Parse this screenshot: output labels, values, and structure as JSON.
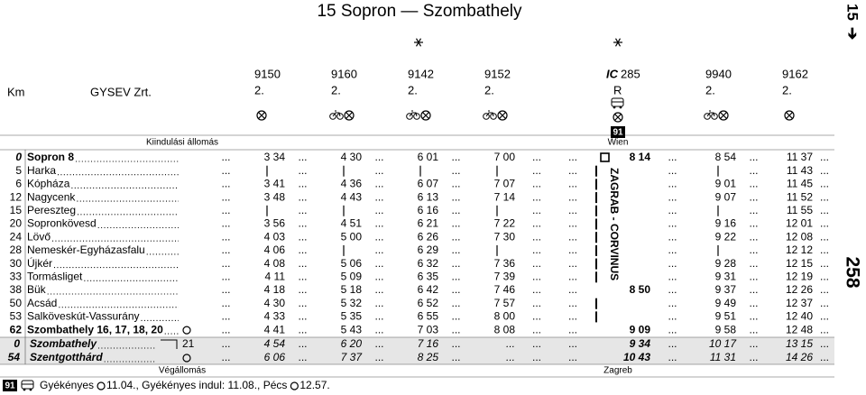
{
  "title": "15 Sopron — Szombathely",
  "page_tab": {
    "number": "15",
    "arrow": "➔"
  },
  "page_number": "258",
  "header": {
    "km": "Km",
    "operator": "GYSEV Zrt.",
    "origin_label": "Kiindulási állomás",
    "destination_label": "Végállomás"
  },
  "leader": "...",
  "trains": [
    {
      "number": "9150",
      "class": "2."
    },
    {
      "number": "9160",
      "class": "2."
    },
    {
      "number": "9142",
      "class": "2."
    },
    {
      "number": "9152",
      "class": "2."
    },
    {
      "prefix": "IC",
      "number": "285",
      "class": "R",
      "note": "91",
      "origin": "Wien",
      "destination": "Zagreb",
      "name": "ZAGRAB - CORVINUS"
    },
    {
      "number": "9940",
      "class": "2."
    },
    {
      "number": "9162",
      "class": "2."
    }
  ],
  "stations": [
    {
      "km": 0,
      "name": "Sopron 8",
      "style": "bold",
      "times": [
        "3 34",
        "4 30",
        "6 01",
        "7 00",
        "8 14",
        "8 54",
        "11 37"
      ]
    },
    {
      "km": 5,
      "name": "Harka",
      "times": [
        null,
        null,
        null,
        null,
        null,
        null,
        "11 43"
      ]
    },
    {
      "km": 6,
      "name": "Kópháza",
      "times": [
        "3 41",
        "4 36",
        "6 07",
        "7 07",
        null,
        "9 01",
        "11 45"
      ]
    },
    {
      "km": 12,
      "name": "Nagycenk",
      "times": [
        "3 48",
        "4 43",
        "6 13",
        "7 14",
        null,
        "9 07",
        "11 52"
      ]
    },
    {
      "km": 15,
      "name": "Pereszteg",
      "times": [
        null,
        null,
        "6 16",
        null,
        null,
        null,
        "11 55"
      ]
    },
    {
      "km": 20,
      "name": "Sopronkövesd",
      "times": [
        "3 56",
        "4 51",
        "6 21",
        "7 22",
        null,
        "9 16",
        "12 01"
      ]
    },
    {
      "km": 24,
      "name": "Lövő",
      "times": [
        "4 03",
        "5 00",
        "6 26",
        "7 30",
        null,
        "9 22",
        "12 08"
      ]
    },
    {
      "km": 28,
      "name": "Nemeskér-Egyházasfalu",
      "times": [
        "4 06",
        null,
        "6 29",
        null,
        null,
        null,
        "12 12"
      ]
    },
    {
      "km": 30,
      "name": "Újkér",
      "times": [
        "4 08",
        "5 06",
        "6 32",
        "7 36",
        null,
        "9 28",
        "12 15"
      ]
    },
    {
      "km": 33,
      "name": "Tormásliget",
      "times": [
        "4 11",
        "5 09",
        "6 35",
        "7 39",
        null,
        "9 31",
        "12 19"
      ]
    },
    {
      "km": 38,
      "name": "Bük",
      "times": [
        "4 18",
        "5 18",
        "6 42",
        "7 46",
        "8 50",
        "9 37",
        "12 26"
      ]
    },
    {
      "km": 50,
      "name": "Acsád",
      "times": [
        "4 30",
        "5 32",
        "6 52",
        "7 57",
        null,
        "9 49",
        "12 37"
      ]
    },
    {
      "km": 53,
      "name": "Salköveskút-Vassurány",
      "times": [
        "4 33",
        "5 35",
        "6 55",
        "8 00",
        null,
        "9 51",
        "12 40"
      ]
    },
    {
      "km": 62,
      "name": "Szombathely 16, 17, 18, 20",
      "style": "bold",
      "times": [
        "4 41",
        "5 43",
        "7 03",
        "8 08",
        "9 09",
        "9 58",
        "12 48"
      ]
    },
    {
      "km": 0,
      "name": "Szombathely",
      "connection": "21",
      "style": "branch",
      "times": [
        "4 54",
        "6 20",
        "7 16",
        "...",
        "9 34",
        "10 17",
        "13 15"
      ]
    },
    {
      "km": 54,
      "name": "Szentgotthárd",
      "style": "branch",
      "times": [
        "6 06",
        "7 37",
        "8 25",
        "...",
        "10 43",
        "11 31",
        "14 26"
      ]
    }
  ],
  "footnote": {
    "ref": "91",
    "parts": [
      "Gyékényes",
      "11.04., Gyékényes indul: 11.08., Pécs",
      "12.57."
    ]
  }
}
